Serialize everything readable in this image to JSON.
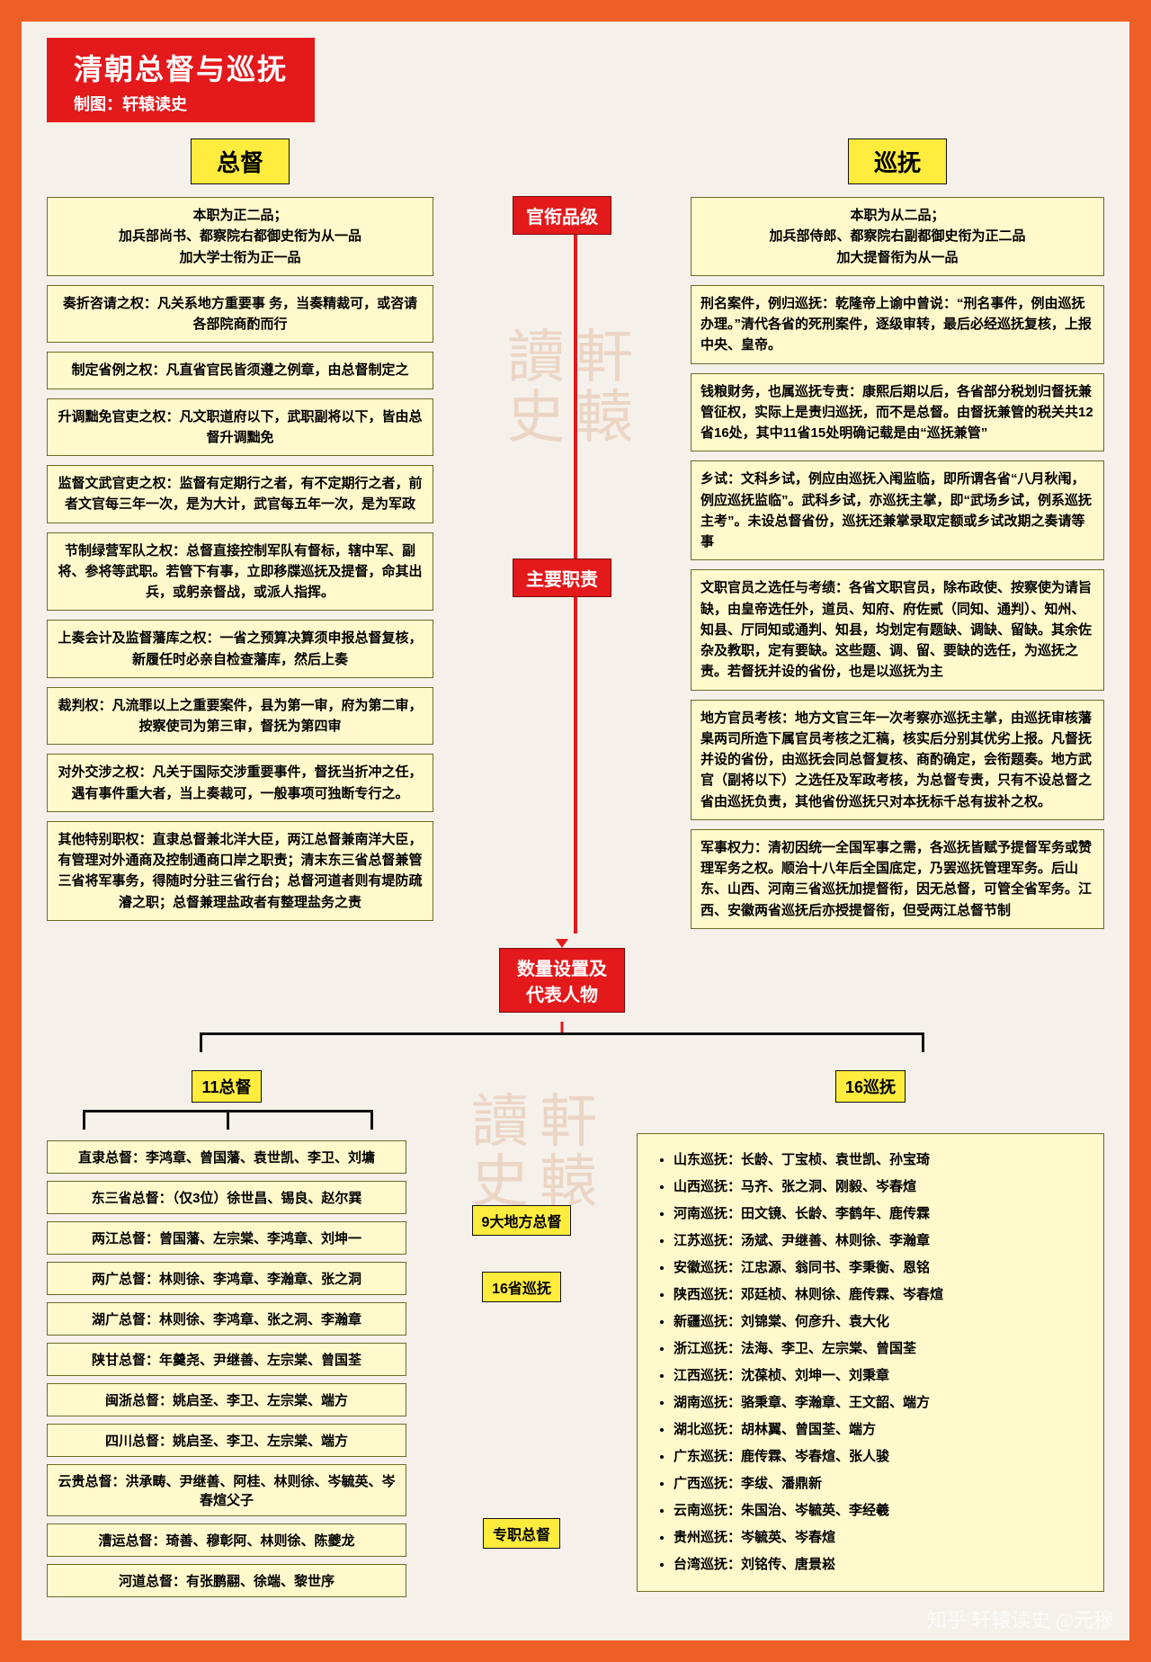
{
  "colors": {
    "frame": "#ed5f24",
    "canvas": "#f5f0ea",
    "red": "#e3191c",
    "yellow_head": "#ffec3d",
    "box_fill": "#fff9cc",
    "box_border": "#6b6b2a",
    "text": "#111111"
  },
  "title": {
    "main": "清朝总督与巡抚",
    "sub": "制图：轩辕读史"
  },
  "heads": {
    "left": "总督",
    "right": "巡抚"
  },
  "center_nodes": {
    "rank": "官衔品级",
    "duty": "主要职责",
    "count": "数量设置及代表人物",
    "zongdu11": "11总督",
    "xunfu16": "16巡抚",
    "local9": "9大地方总督",
    "sheng16": "16省巡抚",
    "zhuanzhi": "专职总督"
  },
  "rank": {
    "left": "本职为正二品；\n加兵部尚书、都察院右都御史衔为从一品\n加大学士衔为正一品",
    "right": "本职为从二品；\n加兵部侍郎、都察院右副都御史衔为正二品\n加大提督衔为从一品"
  },
  "duty_left": [
    "奏折咨请之权：凡关系地方重要事 务，当奏精裁可，或咨请各部院商酌而行",
    "制定省例之权：凡直省官民皆须遵之例章，由总督制定之",
    "升调黜免官吏之权：凡文职道府以下，武职副将以下，皆由总督升调黜免",
    "监督文武官吏之权：监督有定期行之者，有不定期行之者，前者文官每三年一次，是为大计，武官每五年一次，是为军政",
    "节制绿营军队之权：总督直接控制军队有督标，辖中军、副将、参将等武职。若管下有事，立即移牒巡抚及提督，命其出兵，或躬亲督战，或派人指挥。",
    "上奏会计及监督藩库之权：一省之预算决算须申报总督复核，新履任时必亲自检查藩库，然后上奏",
    "裁判权：凡流罪以上之重要案件，县为第一审，府为第二审，按察使司为第三审，督抚为第四审",
    "对外交涉之权：凡关于国际交涉重要事件，督抚当折冲之任，遇有事件重大者，当上奏裁可，一般事项可独断专行之。",
    "其他特别职权：直隶总督兼北洋大臣，两江总督兼南洋大臣，有管理对外通商及控制通商口岸之职责；清末东三省总督兼管三省将军事务，得随时分驻三省行台；总督河道者则有堤防疏濬之职；总督兼理盐政者有整理盐务之责"
  ],
  "duty_right": [
    "刑名案件，例归巡抚：乾隆帝上谕中曾说：“刑名事件，例由巡抚办理。”清代各省的死刑案件，逐级审转，最后必经巡抚复核，上报中央、皇帝。",
    "钱粮财务，也属巡抚专责：康熙后期以后，各省部分税划归督抚兼管征权，实际上是责归巡抚，而不是总督。由督抚兼管的税关共12省16处，其中11省15处明确记载是由“巡抚兼管”",
    "乡试：文科乡试，例应由巡抚入闱监临，即所谓各省“八月秋闱，例应巡抚监临”。武科乡试，亦巡抚主掌，即“武场乡试，例系巡抚主考”。未设总督省份，巡抚还兼掌录取定额或乡试改期之奏请等事",
    "文职官员之选任与考绩：各省文职官员，除布政使、按察使为请旨缺，由皇帝选任外，道员、知府、府佐贰（同知、通判）、知州、知县、厅同知或通判、知县，均划定有题缺、调缺、留缺。其余佐杂及教职，定有要缺。这些题、调、留、要缺的选任，为巡抚之责。若督抚并设的省份，也是以巡抚为主",
    "地方官员考核：地方文官三年一次考察亦巡抚主掌，由巡抚审核藩臬两司所造下属官员考核之汇稿，核实后分别其优劣上报。凡督抚并设的省份，由巡抚会同总督复核、商酌确定，会衔题奏。地方武官（副将以下）之选任及军政考核，为总督专责，只有不设总督之省由巡抚负责，其他省份巡抚只对本抚标千总有拔补之权。",
    "军事权力：清初因统一全国军事之需，各巡抚皆赋予提督军务或赞理军务之权。顺治十八年后全国底定，乃罢巡抚管理军务。后山东、山西、河南三省巡抚加提督衔，因无总督，可管全省军务。江西、安徽两省巡抚后亦授提督衔，但受两江总督节制"
  ],
  "zongdu_list": [
    "直隶总督：李鸿章、曾国藩、袁世凯、李卫、刘墉",
    "东三省总督：（仅3位）徐世昌、锡良、赵尔巽",
    "两江总督：曾国藩、左宗棠、李鸿章、刘坤一",
    "两广总督：林则徐、李鸿章、李瀚章、张之洞",
    "湖广总督：林则徐、李鸿章、张之洞、李瀚章",
    "陕甘总督：年羹尧、尹继善、左宗棠、曾国荃",
    "闽浙总督：姚启圣、李卫、左宗棠、端方",
    "四川总督：姚启圣、李卫、左宗棠、端方",
    "云贵总督：洪承畴、尹继善、阿桂、林则徐、岑毓英、岑春煊父子",
    "漕运总督：琦善、穆彰阿、林则徐、陈夔龙",
    "河道总督：有张鹏翮、徐端、黎世序"
  ],
  "xunfu_list": [
    "山东巡抚：长龄、丁宝桢、袁世凯、孙宝琦",
    "山西巡抚：马齐、张之洞、刚毅、岑春煊",
    "河南巡抚：田文镜、长龄、李鹤年、鹿传霖",
    "江苏巡抚：汤斌、尹继善、林则徐、李瀚章",
    "安徽巡抚：江忠源、翁同书、李秉衡、恩铭",
    "陕西巡抚：邓廷桢、林则徐、鹿传霖、岑春煊",
    "新疆巡抚：刘锦棠、何彦升、袁大化",
    "浙江巡抚：法海、李卫、左宗棠、曾国荃",
    "江西巡抚：沈葆桢、刘坤一、刘秉章",
    "湖南巡抚：骆秉章、李瀚章、王文韶、端方",
    "湖北巡抚：胡林翼、曾国荃、端方",
    "广东巡抚：鹿传霖、岑春煊、张人骏",
    "广西巡抚：李绂、潘鼎新",
    "云南巡抚：朱国治、岑毓英、李经羲",
    "贵州巡抚：岑毓英、岑春煊",
    "台湾巡抚：刘铭传、唐景崧"
  ],
  "credit": "知乎 轩辕读史 @元穆"
}
